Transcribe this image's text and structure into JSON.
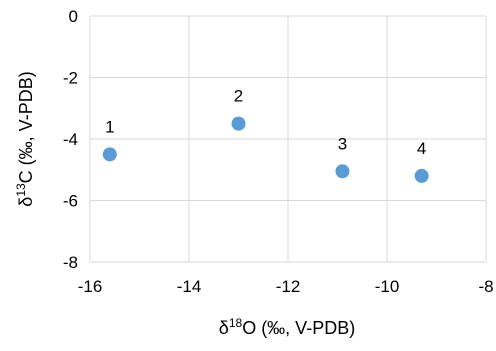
{
  "chart_data": {
    "type": "scatter",
    "title": "",
    "xlabel": {
      "prefix": "δ",
      "sup": "18",
      "suffix": "O (‰, V-PDB)"
    },
    "ylabel": {
      "prefix": "δ",
      "sup": "13",
      "suffix": "C (‰, V-PDB)"
    },
    "xlim": [
      -16,
      -8
    ],
    "ylim": [
      -8,
      0
    ],
    "x_ticks": [
      -16,
      -14,
      -12,
      -10,
      -8
    ],
    "y_ticks": [
      0,
      -2,
      -4,
      -6,
      -8
    ],
    "x_tick_labels": [
      "-16",
      "-14",
      "-12",
      "-10",
      "-8"
    ],
    "y_tick_labels": [
      "0",
      "-2",
      "-4",
      "-6",
      "-8"
    ],
    "grid": true,
    "marker_color": "#5b9bd5",
    "points": [
      {
        "label": "1",
        "x": -15.6,
        "y": -4.5
      },
      {
        "label": "2",
        "x": -13.0,
        "y": -3.5
      },
      {
        "label": "3",
        "x": -10.9,
        "y": -5.05
      },
      {
        "label": "4",
        "x": -9.3,
        "y": -5.2
      }
    ]
  }
}
